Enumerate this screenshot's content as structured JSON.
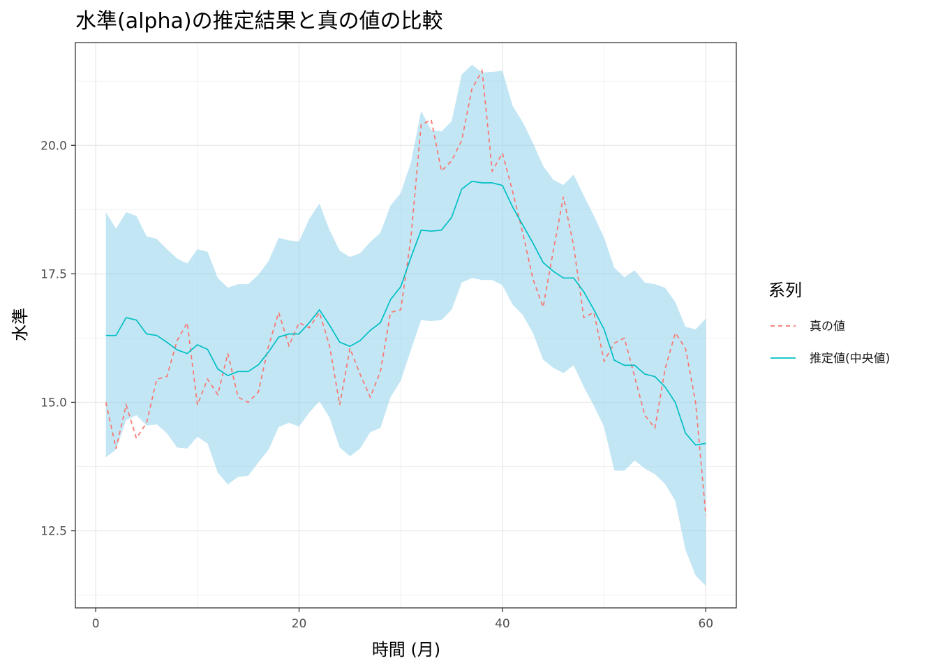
{
  "chart_data": {
    "type": "line",
    "title": "水準(alpha)の推定結果と真の値の比較",
    "xlabel": "時間 (月)",
    "ylabel": "水準",
    "xlim": [
      -2,
      63
    ],
    "ylim": [
      11.0,
      22.0
    ],
    "xticks": [
      0,
      20,
      40,
      60
    ],
    "xtick_labels": [
      "0",
      "20",
      "40",
      "60"
    ],
    "yticks": [
      12.5,
      15.0,
      17.5,
      20.0
    ],
    "ytick_labels": [
      "12.5",
      "15.0",
      "17.5",
      "20.0"
    ],
    "grid": true,
    "legend": {
      "title": "系列",
      "position": "right",
      "entries": [
        {
          "label": "真の値",
          "style": "dashed",
          "color": "#F8766D"
        },
        {
          "label": "推定値(中央値)",
          "style": "solid",
          "color": "#00BFC4"
        }
      ]
    },
    "band_color": "#87CEEB",
    "x": [
      1,
      2,
      3,
      4,
      5,
      6,
      7,
      8,
      9,
      10,
      11,
      12,
      13,
      14,
      15,
      16,
      17,
      18,
      19,
      20,
      21,
      22,
      23,
      24,
      25,
      26,
      27,
      28,
      29,
      30,
      31,
      32,
      33,
      34,
      35,
      36,
      37,
      38,
      39,
      40,
      41,
      42,
      43,
      44,
      45,
      46,
      47,
      48,
      49,
      50,
      51,
      52,
      53,
      54,
      55,
      56,
      57,
      58,
      59,
      60
    ],
    "series": [
      {
        "name": "真の値",
        "color": "#F8766D",
        "style": "dashed",
        "values": [
          15.0,
          14.1,
          14.95,
          14.3,
          14.6,
          15.45,
          15.5,
          16.2,
          16.55,
          14.95,
          15.45,
          15.15,
          15.95,
          15.1,
          15.0,
          15.2,
          16.1,
          16.75,
          16.1,
          16.55,
          16.45,
          16.75,
          16.1,
          14.95,
          16.05,
          15.55,
          15.1,
          15.6,
          16.75,
          16.8,
          18.2,
          20.4,
          20.5,
          19.5,
          19.7,
          20.1,
          21.1,
          21.45,
          19.5,
          19.85,
          19.1,
          18.3,
          17.4,
          16.85,
          17.95,
          19.0,
          18.05,
          16.65,
          16.75,
          15.8,
          16.15,
          16.25,
          15.5,
          14.75,
          14.5,
          15.65,
          16.35,
          16.05,
          15.0,
          12.8
        ]
      },
      {
        "name": "推定値(中央値)",
        "color": "#00BFC4",
        "style": "solid",
        "values": [
          16.3,
          16.3,
          16.65,
          16.6,
          16.33,
          16.3,
          16.17,
          16.02,
          15.95,
          16.12,
          16.03,
          15.65,
          15.52,
          15.6,
          15.6,
          15.73,
          15.98,
          16.27,
          16.33,
          16.33,
          16.55,
          16.8,
          16.5,
          16.17,
          16.09,
          16.2,
          16.4,
          16.55,
          17.0,
          17.25,
          17.82,
          18.35,
          18.33,
          18.35,
          18.6,
          19.15,
          19.3,
          19.27,
          19.27,
          19.22,
          18.8,
          18.45,
          18.1,
          17.72,
          17.55,
          17.42,
          17.42,
          17.15,
          16.8,
          16.42,
          15.82,
          15.72,
          15.72,
          15.55,
          15.5,
          15.3,
          15.0,
          14.4,
          14.17,
          14.2
        ]
      }
    ],
    "band": {
      "lower": [
        13.93,
        14.08,
        14.65,
        14.75,
        14.55,
        14.57,
        14.4,
        14.12,
        14.1,
        14.33,
        14.2,
        13.63,
        13.4,
        13.55,
        13.57,
        13.83,
        14.08,
        14.52,
        14.6,
        14.53,
        14.8,
        15.02,
        14.7,
        14.12,
        13.95,
        14.1,
        14.42,
        14.5,
        15.1,
        15.42,
        16.02,
        16.6,
        16.58,
        16.6,
        16.8,
        17.33,
        17.42,
        17.38,
        17.38,
        17.28,
        16.9,
        16.7,
        16.35,
        15.83,
        15.67,
        15.57,
        15.72,
        15.3,
        14.93,
        14.52,
        13.67,
        13.67,
        13.87,
        13.71,
        13.6,
        13.41,
        13.08,
        12.13,
        11.63,
        11.43
      ],
      "upper": [
        18.7,
        18.38,
        18.7,
        18.63,
        18.23,
        18.18,
        17.98,
        17.8,
        17.7,
        17.98,
        17.93,
        17.42,
        17.23,
        17.3,
        17.3,
        17.48,
        17.75,
        18.2,
        18.15,
        18.13,
        18.57,
        18.87,
        18.35,
        17.95,
        17.83,
        17.9,
        18.12,
        18.3,
        18.83,
        19.07,
        19.67,
        20.67,
        20.3,
        20.27,
        20.47,
        21.38,
        21.57,
        21.42,
        21.43,
        21.45,
        20.77,
        20.45,
        20.05,
        19.6,
        19.33,
        19.23,
        19.43,
        19.02,
        18.63,
        18.2,
        17.62,
        17.43,
        17.57,
        17.33,
        17.3,
        17.23,
        16.95,
        16.47,
        16.42,
        16.63
      ]
    }
  }
}
